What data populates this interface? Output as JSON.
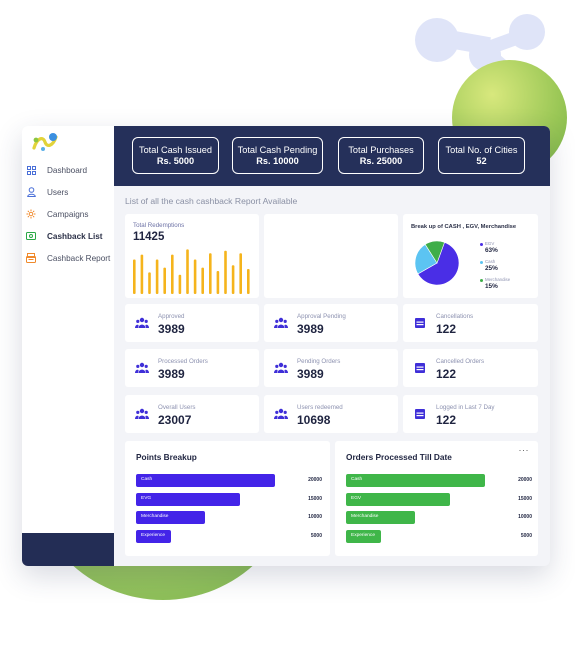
{
  "sidebar": {
    "items": [
      {
        "label": "Dashboard",
        "icon": "grid-icon"
      },
      {
        "label": "Users",
        "icon": "user-icon"
      },
      {
        "label": "Campaigns",
        "icon": "gear-icon"
      },
      {
        "label": "Cashback List",
        "icon": "cash-icon"
      },
      {
        "label": "Cashback Report",
        "icon": "report-icon"
      }
    ],
    "active_index": 3
  },
  "header": {
    "stats": [
      {
        "title": "Total Cash Issued",
        "value": "Rs. 5000"
      },
      {
        "title": "Total Cash Pending",
        "value": "Rs. 10000"
      },
      {
        "title": "Total Purchases",
        "value": "Rs. 25000"
      },
      {
        "title": "Total No. of Cities",
        "value": "52"
      }
    ]
  },
  "main": {
    "section_title": "List of all the cash cashback Report Available",
    "redemptions": {
      "label": "Total Redemptions",
      "value": "11425",
      "bars": [
        0.72,
        0.82,
        0.45,
        0.72,
        0.55,
        0.82,
        0.4,
        0.93,
        0.72,
        0.55,
        0.85,
        0.48,
        0.9,
        0.6,
        0.85,
        0.52
      ]
    },
    "breakup": {
      "title": "Break up of CASH , EGV, Merchandise",
      "segments": [
        {
          "name": "EGV",
          "percent": "63%",
          "value": 63,
          "color": "#4a2ee6"
        },
        {
          "name": "Cash",
          "percent": "25%",
          "value": 25,
          "color": "#5cc4f2"
        },
        {
          "name": "Merchandise",
          "percent": "15%",
          "value": 15,
          "color": "#3fae49"
        }
      ]
    },
    "metrics": [
      {
        "label": "Approved",
        "value": "3989",
        "icon": "users-group-icon"
      },
      {
        "label": "Approval Pending",
        "value": "3989",
        "icon": "users-group-icon"
      },
      {
        "label": "Cancellations",
        "value": "122",
        "icon": "calendar-icon"
      },
      {
        "label": "Processed Orders",
        "value": "3989",
        "icon": "users-group-icon"
      },
      {
        "label": "Pending Orders",
        "value": "3989",
        "icon": "users-group-icon"
      },
      {
        "label": "Cancelled Orders",
        "value": "122",
        "icon": "calendar-icon"
      },
      {
        "label": "Overall Users",
        "value": "23007",
        "icon": "users-group-icon"
      },
      {
        "label": "Users redeemed",
        "value": "10698",
        "icon": "users-group-icon"
      },
      {
        "label": "Logged in Last 7 Day",
        "value": "122",
        "icon": "calendar-icon"
      }
    ],
    "points_breakup": {
      "title": "Points Breakup",
      "color": "#4324e8",
      "max": 25000,
      "rows": [
        {
          "label": "Cash",
          "value": 20000,
          "display": "20000"
        },
        {
          "label": "EVG",
          "value": 15000,
          "display": "15000"
        },
        {
          "label": "Merchandise",
          "value": 10000,
          "display": "10000"
        },
        {
          "label": "Experience",
          "value": 5000,
          "display": "5000"
        }
      ]
    },
    "orders_processed": {
      "title": "Orders Processed Till Date",
      "menu": "···",
      "color": "#3fb649",
      "max": 25000,
      "rows": [
        {
          "label": "Cash",
          "value": 20000,
          "display": "20000"
        },
        {
          "label": "EGV",
          "value": 15000,
          "display": "15000"
        },
        {
          "label": "Merchandise",
          "value": 10000,
          "display": "10000"
        },
        {
          "label": "Experience",
          "value": 5000,
          "display": "5000"
        }
      ]
    }
  },
  "colors": {
    "topbar": "#25305a",
    "accent_blue": "#4a2ee6",
    "accent_green": "#3fb649",
    "bar_yellow": "#f5b41c"
  }
}
